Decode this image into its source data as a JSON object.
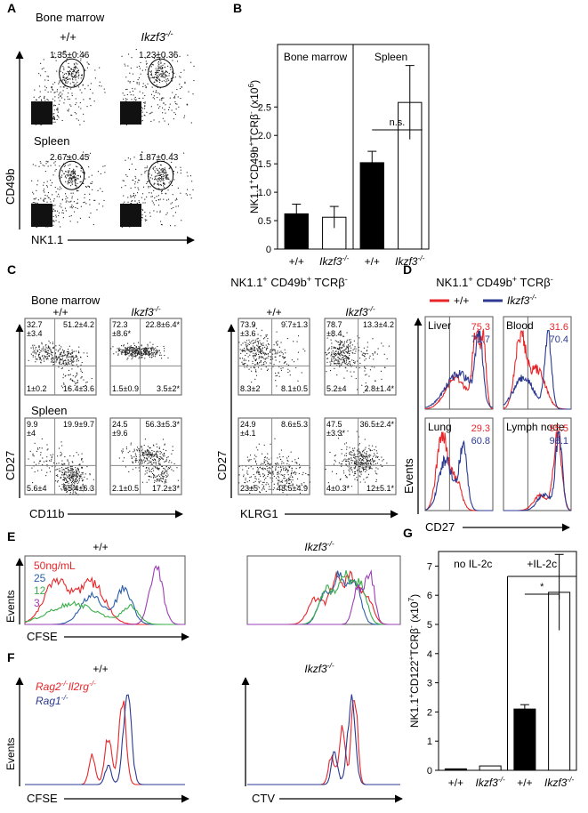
{
  "panels": {
    "A": {
      "label": "A",
      "tissues": [
        "Bone marrow",
        "Spleen"
      ],
      "genotypes": [
        "+/+",
        [
          "Ikzf3",
          "-/-"
        ]
      ],
      "gates": [
        [
          "1.35±0.46",
          "1.23±0.36"
        ],
        [
          "2.67±0.45",
          "1.87±0.43"
        ]
      ],
      "y_axis": "CD49b",
      "x_axis": "NK1.1"
    },
    "C": {
      "label": "C",
      "title": [
        "NK1.1",
        "+",
        " CD49b",
        "+",
        " TCRβ",
        "-"
      ],
      "tissues": [
        "Bone marrow",
        "Spleen"
      ],
      "genotypes": [
        "+/+",
        [
          "Ikzf3",
          "-/-"
        ]
      ],
      "x_axes": [
        "CD11b",
        "KLRG1"
      ],
      "y_axis": "CD27",
      "plots": [
        [
          [
            [
              "32.7",
              "±3.4"
            ],
            [
              "51.2±4.2"
            ],
            [
              "1±0.2"
            ],
            [
              "16.4±3.6"
            ]
          ],
          [
            [
              "72.3",
              "±8.6*"
            ],
            [
              "22.8±6.4*"
            ],
            [
              "1.5±0.9"
            ],
            [
              "3.5±2*"
            ]
          ],
          [
            [
              "73.9",
              "±3.6"
            ],
            [
              "9.7±1.3"
            ],
            [
              "8.3±2"
            ],
            [
              "8.1±0.5"
            ]
          ],
          [
            [
              "78.7",
              "±8.4"
            ],
            [
              "13.3±4.2"
            ],
            [
              "5.2±4"
            ],
            [
              "2.8±1.4*"
            ]
          ]
        ],
        [
          [
            [
              "9.9",
              "±4"
            ],
            [
              "19.9±9.7"
            ],
            [
              "5.6±4"
            ],
            [
              "65.4±6.3"
            ]
          ],
          [
            [
              "24.5",
              "±9.6"
            ],
            [
              "56.3±5.3*"
            ],
            [
              "2.1±0.5"
            ],
            [
              "17.2±3*"
            ]
          ],
          [
            [
              "24.9",
              "±4.1"
            ],
            [
              "8.6±5.3"
            ],
            [
              "23±5"
            ],
            [
              "43.5±4.9"
            ]
          ],
          [
            [
              "47.5",
              "±3.3*"
            ],
            [
              "36.5±2.4*"
            ],
            [
              "4±0.3*"
            ],
            [
              "12±5.1*"
            ]
          ]
        ]
      ]
    },
    "D": {
      "label": "D",
      "title": [
        "NK1.1",
        "+",
        " CD49b",
        "+",
        " TCRβ",
        "-"
      ],
      "legend": [
        "+/+",
        [
          "Ikzf3",
          "-/-"
        ]
      ],
      "colors": [
        "#e8262a",
        "#2b3990"
      ],
      "tissues": [
        "Liver",
        "Blood",
        "Lung",
        "Lymph node"
      ],
      "percents": [
        [
          "75.3",
          "71.7"
        ],
        [
          "31.6",
          "70.4"
        ],
        [
          "29.3",
          "60.8"
        ],
        [
          "95.5",
          "98.1"
        ]
      ],
      "y_axis": "Events",
      "x_axis": "CD27"
    },
    "E": {
      "label": "E",
      "genotypes": [
        "+/+",
        [
          "Ikzf3",
          "-/-"
        ]
      ],
      "legend": [
        "50ng/mL",
        "25",
        "12",
        "3"
      ],
      "colors": [
        "#e8262a",
        "#2b5fa8",
        "#3aae4a",
        "#9b3fb5"
      ],
      "y_axis": "Events",
      "x_axis": "CFSE"
    },
    "F": {
      "label": "F",
      "genotypes": [
        "+/+",
        [
          "Ikzf3",
          "-/-"
        ]
      ],
      "legend": [
        [
          "Rag2",
          "-/-",
          "Il2rg",
          "-/-"
        ],
        [
          "Rag1",
          "-/-"
        ]
      ],
      "colors": [
        "#e8262a",
        "#2b3990"
      ],
      "y_axis": "Events",
      "x_axes": [
        "CFSE",
        "CTV"
      ]
    }
  },
  "chart_data": [
    {
      "type": "bar",
      "panel_label": "B",
      "y_label": [
        "NK1.1",
        "+",
        "CD49b",
        "+",
        "TCRβ",
        "-",
        " (x10",
        "6",
        ")"
      ],
      "groups": [
        "Bone marrow",
        "Spleen"
      ],
      "categories": [
        "+/+",
        [
          "Ikzf3",
          "-/-"
        ],
        "+/+",
        [
          "Ikzf3",
          "-/-"
        ]
      ],
      "values": [
        0.62,
        0.56,
        1.52,
        2.58
      ],
      "errors": [
        0.17,
        0.19,
        0.2,
        0.65
      ],
      "colors": [
        "#000000",
        "#ffffff",
        "#000000",
        "#ffffff"
      ],
      "annotation": "n.s.",
      "ylim": [
        0,
        3.6
      ],
      "yticks": [
        0,
        0.5,
        {
          "value": 1,
          "label": "1.0"
        },
        1.5,
        {
          "value": 2,
          "label": "2.0"
        },
        2.5
      ]
    },
    {
      "type": "bar",
      "panel_label": "G",
      "y_label": [
        "NK1.1",
        "+",
        "CD122",
        "+",
        "TCRβ",
        "-",
        " (x10",
        "7",
        ")"
      ],
      "groups": [
        "no IL-2c",
        "+IL-2c"
      ],
      "categories": [
        "+/+",
        [
          "Ikzf3",
          "-/-"
        ],
        "+/+",
        [
          "Ikzf3",
          "-/-"
        ]
      ],
      "values": [
        0.05,
        0.15,
        2.1,
        6.1
      ],
      "errors": [
        null,
        null,
        0.15,
        1.3
      ],
      "colors": [
        "#000000",
        "#ffffff",
        "#000000",
        "#ffffff"
      ],
      "annotation": "*",
      "ylim": [
        0,
        7.5
      ],
      "yticks": [
        0,
        1,
        2,
        3,
        4,
        5,
        6,
        7
      ]
    }
  ]
}
